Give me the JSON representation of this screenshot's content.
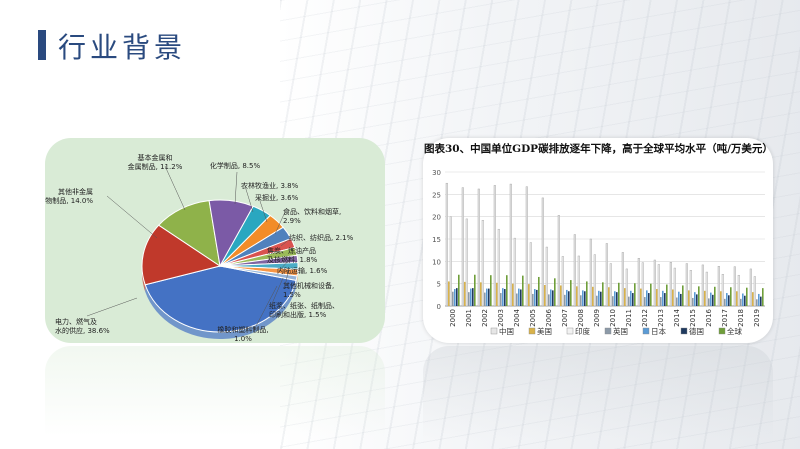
{
  "slide": {
    "title": "行业背景"
  },
  "colors": {
    "accent": "#2a4a7f",
    "pie_bg": "#d9ebd6"
  },
  "chart_data": [
    {
      "type": "pie",
      "title": "",
      "slices": [
        {
          "label": "电力、燃气及\n水的供应, 38.6%",
          "value": 38.6,
          "color": "#4472c4"
        },
        {
          "label": "其他非金属\n矿物制品, 14.0%",
          "value": 14.0,
          "color": "#c0392b"
        },
        {
          "label": "基本金属和\n金属制品, 11.2%",
          "value": 11.2,
          "color": "#8fb24a"
        },
        {
          "label": "化学制品, 8.5%",
          "value": 8.5,
          "color": "#7b5aa6"
        },
        {
          "label": "农林牧渔业, 3.8%",
          "value": 3.8,
          "color": "#2aa7c0"
        },
        {
          "label": "采掘业, 3.6%",
          "value": 3.6,
          "color": "#f28c28"
        },
        {
          "label": "食品、饮料和烟草,\n2.9%",
          "value": 2.9,
          "color": "#4f81bd"
        },
        {
          "label": "纺织、纺织品, 2.1%",
          "value": 2.1,
          "color": "#d9534f"
        },
        {
          "label": "焦炭、炼油产品\n及核燃料, 1.8%",
          "value": 1.8,
          "color": "#9bbb59"
        },
        {
          "label": "内陆运输, 1.6%",
          "value": 1.6,
          "color": "#8064a2"
        },
        {
          "label": "其他机械和设备,\n1.5%",
          "value": 1.5,
          "color": "#4bacc6"
        },
        {
          "label": "纸浆、纸张、纸制品、\n印刷和出版, 1.5%",
          "value": 1.5,
          "color": "#f79646"
        },
        {
          "label": "橡胶和塑料制品,\n1.0%",
          "value": 1.0,
          "color": "#95b3d7"
        }
      ]
    },
    {
      "type": "bar",
      "title": "图表30、中国单位GDP碳排放逐年下降，高于全球平均水平（吨/万美元）",
      "categories": [
        "2000",
        "2001",
        "2002",
        "2003",
        "2004",
        "2005",
        "2006",
        "2007",
        "2008",
        "2009",
        "2010",
        "2011",
        "2012",
        "2013",
        "2014",
        "2015",
        "2016",
        "2017",
        "2018",
        "2019"
      ],
      "ylim": [
        0,
        30
      ],
      "yticks": [
        "0",
        "5",
        "10",
        "15",
        "20",
        "25",
        "30"
      ],
      "series": [
        {
          "name": "中国",
          "color": "#e6e6e6",
          "values": [
            27.5,
            26.5,
            26.2,
            27,
            27.3,
            26.7,
            24.2,
            20.3,
            16,
            15,
            14,
            12,
            10.7,
            10.3,
            9.8,
            9.5,
            9.2,
            8.9,
            8.8,
            8.3
          ]
        },
        {
          "name": "美国",
          "color": "#d9b24a",
          "values": [
            5.5,
            5.4,
            5.3,
            5.2,
            5.0,
            4.9,
            4.7,
            4.6,
            4.4,
            4.3,
            4.2,
            4.0,
            3.9,
            3.8,
            3.7,
            3.5,
            3.4,
            3.3,
            3.3,
            3.1
          ]
        },
        {
          "name": "印度",
          "color": "#f2f2f2",
          "values": [
            20,
            19.5,
            19.2,
            17.2,
            15.2,
            14.2,
            13.2,
            11.1,
            11.2,
            11.5,
            9.5,
            8.3,
            9.7,
            9.3,
            8.5,
            8.0,
            7.6,
            7.1,
            6.9,
            6.6
          ]
        },
        {
          "name": "英国",
          "color": "#8c9aa8",
          "values": [
            3.2,
            3.1,
            3.0,
            2.9,
            2.8,
            2.7,
            2.6,
            2.5,
            2.4,
            2.3,
            2.2,
            2.1,
            2.0,
            2.0,
            1.9,
            1.8,
            1.7,
            1.6,
            1.6,
            1.5
          ]
        },
        {
          "name": "日本",
          "color": "#5b9bd5",
          "values": [
            3.8,
            3.9,
            3.9,
            4.0,
            3.9,
            3.8,
            3.7,
            3.6,
            3.5,
            3.4,
            3.3,
            3.4,
            3.5,
            3.4,
            3.2,
            3.1,
            3.0,
            2.9,
            2.8,
            2.7
          ]
        },
        {
          "name": "德国",
          "color": "#1f3a5f",
          "values": [
            4.0,
            4.0,
            3.9,
            3.8,
            3.7,
            3.6,
            3.5,
            3.3,
            3.3,
            3.2,
            3.1,
            2.9,
            2.9,
            2.9,
            2.7,
            2.6,
            2.5,
            2.4,
            2.3,
            2.1
          ]
        },
        {
          "name": "全球",
          "color": "#6f9e3a",
          "values": [
            7.0,
            7.0,
            6.9,
            6.9,
            6.8,
            6.5,
            6.2,
            5.8,
            5.5,
            5.3,
            5.2,
            5.1,
            5.0,
            4.8,
            4.6,
            4.4,
            4.3,
            4.2,
            4.1,
            4.0
          ]
        }
      ],
      "legend": [
        "中国",
        "美国",
        "印度",
        "英国",
        "日本",
        "德国",
        "全球"
      ]
    }
  ]
}
